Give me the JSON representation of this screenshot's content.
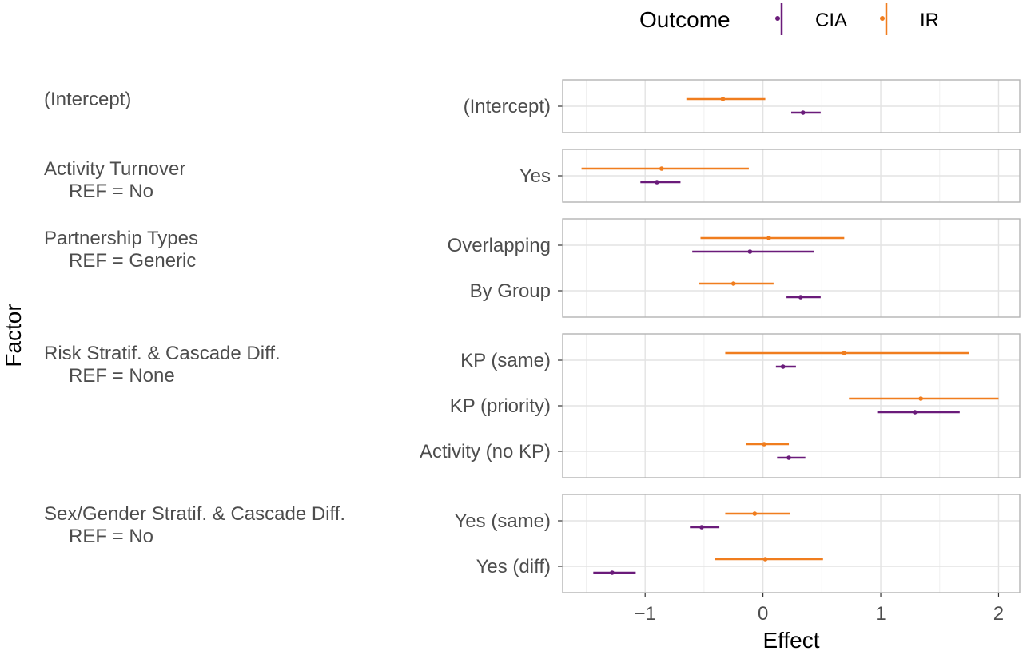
{
  "chart_data": {
    "type": "forest",
    "xlabel": "Effect",
    "ylabel": "Factor",
    "xlim": [
      -1.7,
      2.18
    ],
    "x_ticks": [
      -1,
      0,
      1,
      2
    ],
    "x_tick_labels": [
      "−1",
      "0",
      "1",
      "2"
    ],
    "grid": true,
    "legend": {
      "title": "Outcome",
      "placement": "top",
      "items": [
        {
          "name": "CIA",
          "color": "#6a1b7a"
        },
        {
          "name": "IR",
          "color": "#f07d1e"
        }
      ]
    },
    "panels": [
      {
        "factor": "(Intercept)",
        "ref": "",
        "rows": [
          {
            "label": "(Intercept)",
            "IR": {
              "est": -0.34,
              "lo": -0.65,
              "hi": 0.02
            },
            "CIA": {
              "est": 0.34,
              "lo": 0.24,
              "hi": 0.49
            }
          }
        ]
      },
      {
        "factor": "Activity Turnover",
        "ref": "REF = No",
        "rows": [
          {
            "label": "Yes",
            "IR": {
              "est": -0.86,
              "lo": -1.54,
              "hi": -0.12
            },
            "CIA": {
              "est": -0.9,
              "lo": -1.04,
              "hi": -0.7
            }
          }
        ]
      },
      {
        "factor": "Partnership Types",
        "ref": "REF = Generic",
        "rows": [
          {
            "label": "Overlapping",
            "IR": {
              "est": 0.05,
              "lo": -0.53,
              "hi": 0.69
            },
            "CIA": {
              "est": -0.11,
              "lo": -0.6,
              "hi": 0.43
            }
          },
          {
            "label": "By Group",
            "IR": {
              "est": -0.25,
              "lo": -0.54,
              "hi": 0.09
            },
            "CIA": {
              "est": 0.32,
              "lo": 0.2,
              "hi": 0.49
            }
          }
        ]
      },
      {
        "factor": "Risk Stratif. & Cascade Diff.",
        "ref": "REF = None",
        "rows": [
          {
            "label": "KP (same)",
            "IR": {
              "est": 0.69,
              "lo": -0.32,
              "hi": 1.75
            },
            "CIA": {
              "est": 0.17,
              "lo": 0.11,
              "hi": 0.28
            }
          },
          {
            "label": "KP (priority)",
            "IR": {
              "est": 1.34,
              "lo": 0.73,
              "hi": 2.0
            },
            "CIA": {
              "est": 1.29,
              "lo": 0.97,
              "hi": 1.67
            }
          },
          {
            "label": "Activity (no KP)",
            "IR": {
              "est": 0.01,
              "lo": -0.14,
              "hi": 0.22
            },
            "CIA": {
              "est": 0.22,
              "lo": 0.12,
              "hi": 0.36
            }
          }
        ]
      },
      {
        "factor": "Sex/Gender Stratif. & Cascade Diff.",
        "ref": "REF = No",
        "rows": [
          {
            "label": "Yes (same)",
            "IR": {
              "est": -0.07,
              "lo": -0.32,
              "hi": 0.23
            },
            "CIA": {
              "est": -0.52,
              "lo": -0.62,
              "hi": -0.37
            }
          },
          {
            "label": "Yes (diff)",
            "IR": {
              "est": 0.02,
              "lo": -0.41,
              "hi": 0.51
            },
            "CIA": {
              "est": -1.28,
              "lo": -1.44,
              "hi": -1.08
            }
          }
        ]
      }
    ]
  }
}
